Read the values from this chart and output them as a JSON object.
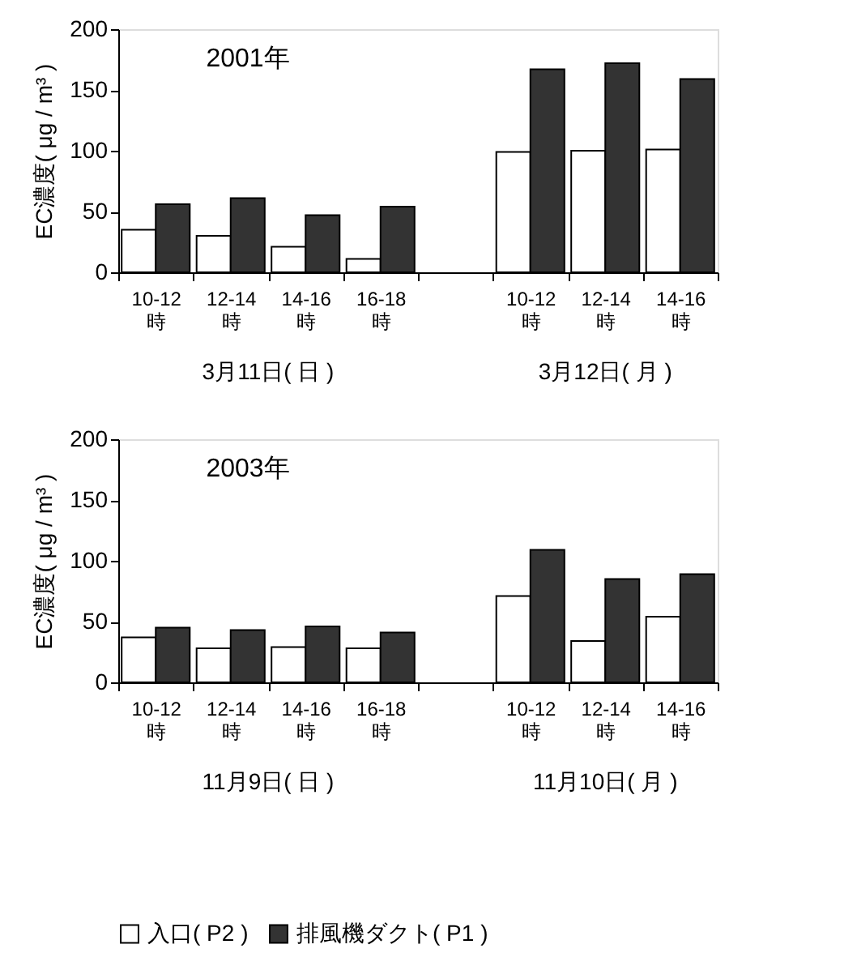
{
  "chart_data": [
    {
      "type": "bar",
      "ylabel": "EC濃度( μg / m³ )",
      "categories": [
        "10-12\n時",
        "12-14\n時",
        "14-16\n時",
        "16-18\n時",
        null,
        "10-12\n時",
        "12-14\n時",
        "14-16\n時"
      ],
      "series": [
        {
          "name": "入口( P2 )",
          "color": "#ffffff",
          "values": [
            35,
            30,
            21,
            11,
            null,
            99,
            100,
            101
          ]
        },
        {
          "name": "排風機ダクト( P1 )",
          "color": "#333333",
          "values": [
            56,
            61,
            47,
            54,
            null,
            167,
            172,
            159
          ]
        }
      ],
      "ylim": [
        0,
        200
      ],
      "yticks": [
        0,
        50,
        100,
        150,
        200
      ],
      "legend": "bottom",
      "annotations": [
        "2001年",
        "3月11日( 日 )",
        "3月12日( 月 )"
      ]
    },
    {
      "type": "bar",
      "ylabel": "EC濃度( μg / m³ )",
      "categories": [
        "10-12\n時",
        "12-14\n時",
        "14-16\n時",
        "16-18\n時",
        null,
        "10-12\n時",
        "12-14\n時",
        "14-16\n時"
      ],
      "series": [
        {
          "name": "入口( P2 )",
          "color": "#ffffff",
          "values": [
            37,
            28,
            29,
            28,
            null,
            71,
            34,
            54
          ]
        },
        {
          "name": "排風機ダクト( P1 )",
          "color": "#333333",
          "values": [
            45,
            43,
            46,
            41,
            null,
            109,
            85,
            89
          ]
        }
      ],
      "ylim": [
        0,
        200
      ],
      "yticks": [
        0,
        50,
        100,
        150,
        200
      ],
      "legend": "bottom",
      "annotations": [
        "2003年",
        "11月9日( 日 )",
        "11月10日( 月 )"
      ]
    }
  ]
}
